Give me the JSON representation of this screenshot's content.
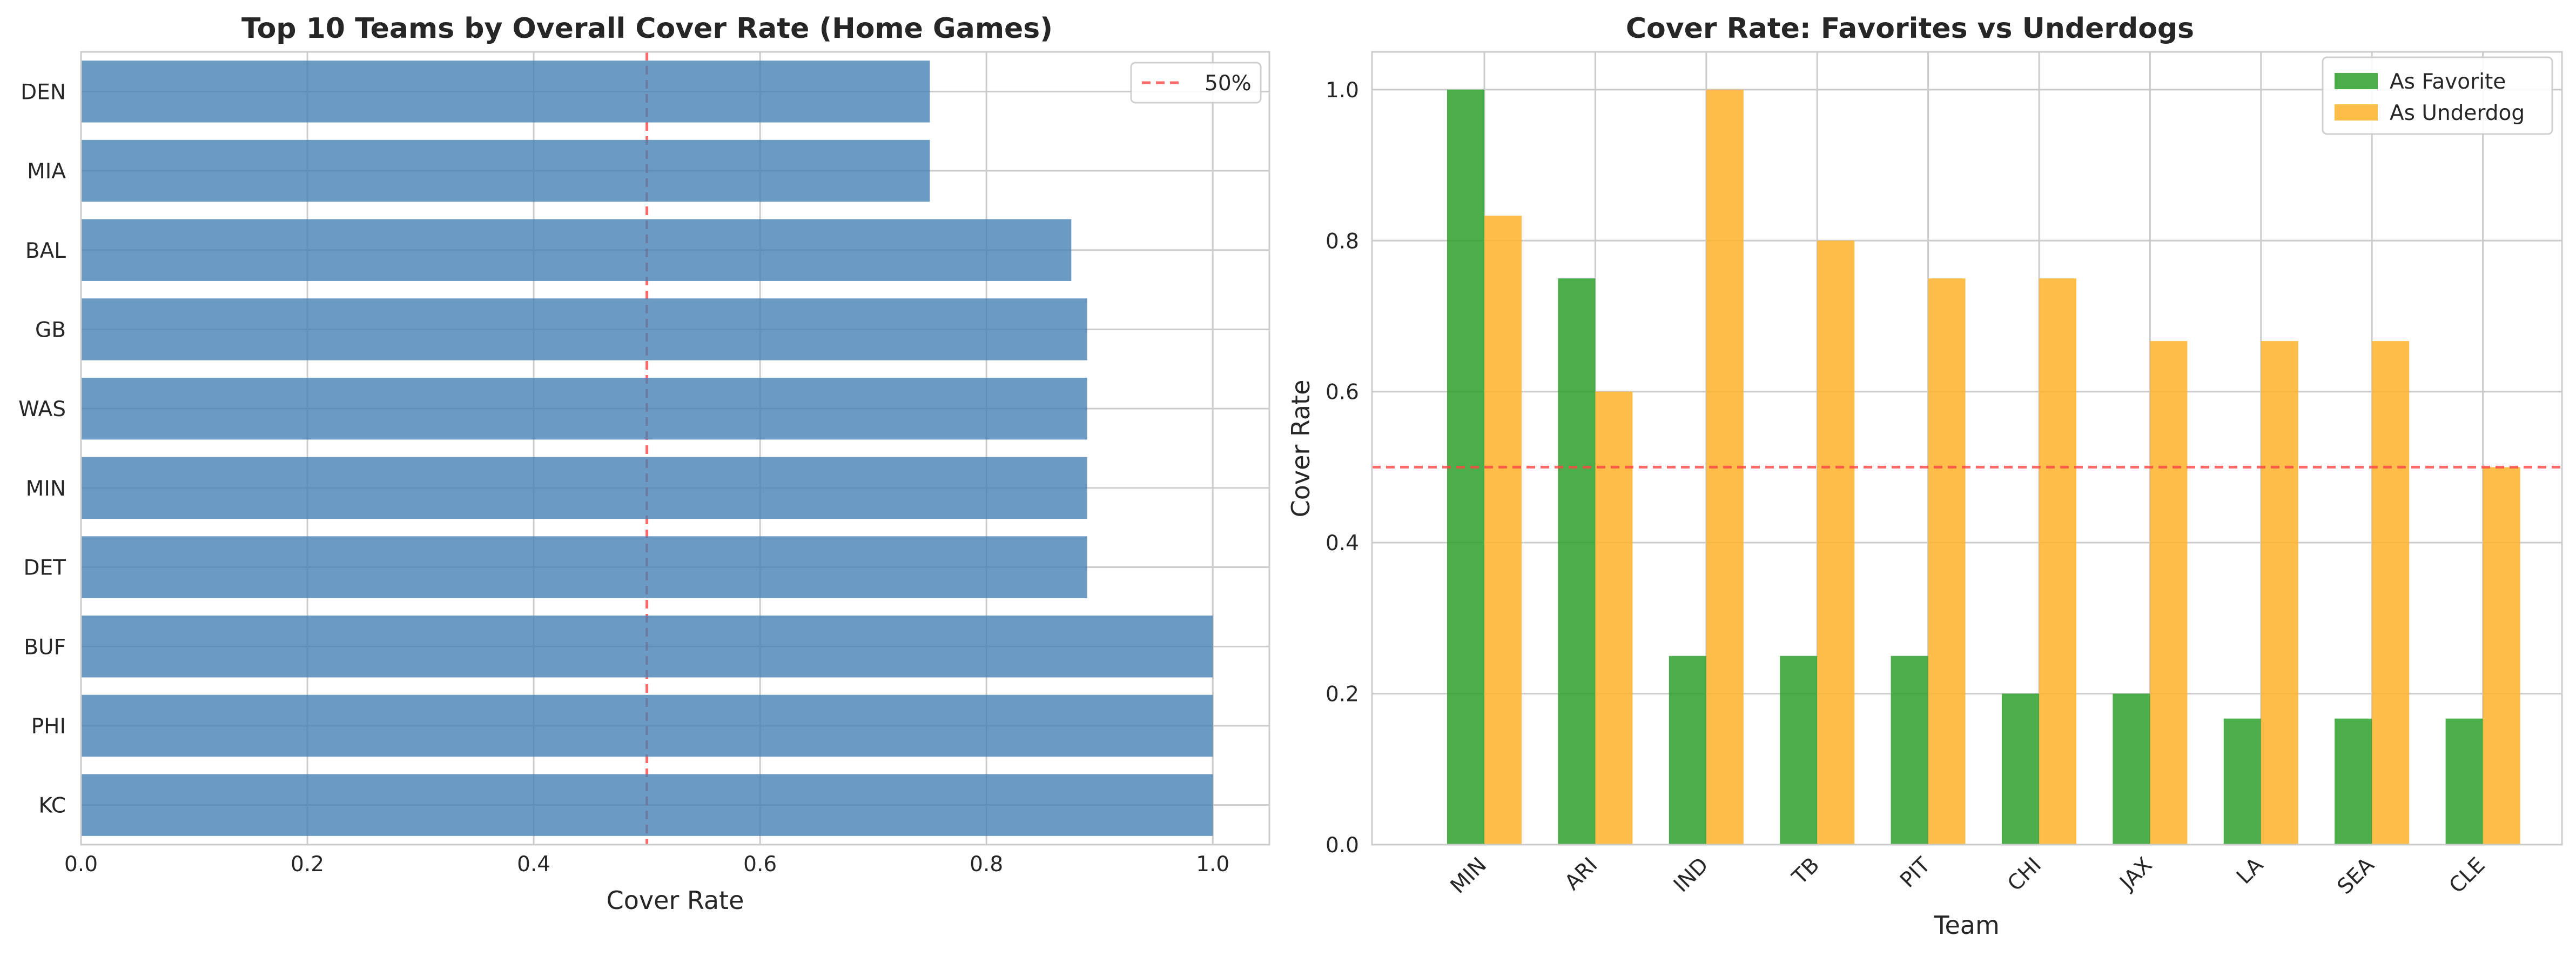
{
  "chart_data": [
    {
      "type": "bar",
      "orientation": "horizontal",
      "title": "Top 10 Teams by Overall Cover Rate (Home Games)",
      "xlabel": "Cover Rate",
      "ylabel": "",
      "categories": [
        "KC",
        "PHI",
        "BUF",
        "DET",
        "MIN",
        "WAS",
        "GB",
        "BAL",
        "MIA",
        "DEN"
      ],
      "values": [
        1.0,
        1.0,
        1.0,
        0.889,
        0.889,
        0.889,
        0.889,
        0.875,
        0.75,
        0.75
      ],
      "xlim": [
        0,
        1.05
      ],
      "xticks": [
        "0.0",
        "0.2",
        "0.4",
        "0.6",
        "0.8",
        "1.0"
      ],
      "reference_line": {
        "value": 0.5,
        "label": "50%",
        "color": "#ff4444",
        "style": "dashed"
      },
      "bar_color": "#4682b4",
      "grid": true,
      "legend": {
        "position": "top-right",
        "entries": [
          "50%"
        ]
      }
    },
    {
      "type": "bar",
      "orientation": "vertical",
      "title": "Cover Rate: Favorites vs Underdogs",
      "xlabel": "Team",
      "ylabel": "Cover Rate",
      "categories": [
        "MIN",
        "ARI",
        "IND",
        "TB",
        "PIT",
        "CHI",
        "JAX",
        "LA",
        "SEA",
        "CLE"
      ],
      "series": [
        {
          "name": "As Favorite",
          "color": "#2ca02c",
          "values": [
            1.0,
            0.75,
            0.25,
            0.25,
            0.25,
            0.2,
            0.2,
            0.167,
            0.167,
            0.167
          ]
        },
        {
          "name": "As Underdog",
          "color": "#ffb32a",
          "values": [
            0.833,
            0.6,
            1.0,
            0.8,
            0.75,
            0.75,
            0.667,
            0.667,
            0.667,
            0.5
          ]
        }
      ],
      "ylim": [
        0,
        1.05
      ],
      "yticks": [
        "0.0",
        "0.2",
        "0.4",
        "0.6",
        "0.8",
        "1.0"
      ],
      "reference_line": {
        "value": 0.5,
        "color": "#ff4444",
        "style": "dashed"
      },
      "grid": true,
      "legend": {
        "position": "top-right",
        "entries": [
          "As Favorite",
          "As Underdog"
        ]
      }
    }
  ]
}
